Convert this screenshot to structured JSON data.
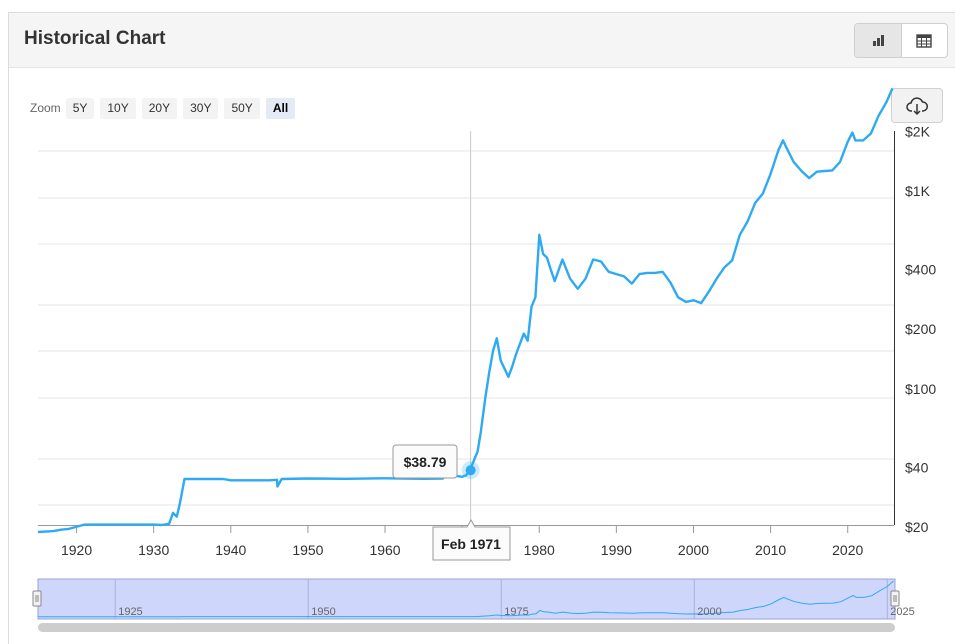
{
  "header": {
    "title": "Historical Chart",
    "chart_view_icon": "bar-chart-icon",
    "table_view_icon": "table-icon"
  },
  "zoom": {
    "label": "Zoom",
    "options": [
      "5Y",
      "10Y",
      "20Y",
      "30Y",
      "50Y",
      "All"
    ],
    "active": "All"
  },
  "download_icon": "cloud-download-icon",
  "tooltip": {
    "value": "$38.79",
    "date": "Feb 1971"
  },
  "colors": {
    "line": "#2eaaf2",
    "navigator_fill": "#cfd6fb",
    "grid": "#e6e6e6"
  },
  "chart_data": {
    "type": "line",
    "title": "",
    "xlabel": "",
    "ylabel": "",
    "y_scale": "log",
    "x_ticks": [
      "1920",
      "1930",
      "1940",
      "1950",
      "1960",
      "1970",
      "1980",
      "1990",
      "2000",
      "2010",
      "2020"
    ],
    "y_ticks": [
      "$20",
      "$40",
      "$100",
      "$200",
      "$400",
      "$1K",
      "$2K"
    ],
    "y_tick_values": [
      20,
      40,
      100,
      200,
      400,
      1000,
      2000
    ],
    "xlim": [
      1915,
      2026
    ],
    "navigator_ticks": [
      "1925",
      "1950",
      "1975",
      "2000",
      "2025"
    ],
    "series": [
      {
        "x": [
          1915,
          1917,
          1918,
          1919,
          1921,
          1925,
          1930,
          1931,
          1932,
          1932.5,
          1933,
          1933.4,
          1934,
          1939,
          1940,
          1945,
          1946,
          1946.05,
          1946.6,
          1950,
          1955,
          1960,
          1965,
          1967.5,
          1968,
          1969,
          1970,
          1970.5,
          1971,
          1971.2,
          1972,
          1972.4,
          1973,
          1973.5,
          1974,
          1974.5,
          1975,
          1976,
          1976.5,
          1977,
          1978,
          1978.5,
          1979,
          1979.5,
          1980,
          1980.5,
          1981,
          1981.5,
          1982,
          1983,
          1984,
          1985,
          1986,
          1987,
          1988,
          1989,
          1990,
          1991,
          1992,
          1993,
          1994,
          1995,
          1996,
          1997,
          1998,
          1999,
          2000,
          2001,
          2002,
          2003,
          2004,
          2005,
          2006,
          2007,
          2008,
          2009,
          2010,
          2011,
          2011.6,
          2012,
          2013,
          2014,
          2015,
          2016,
          2017,
          2018,
          2019,
          2020,
          2020.6,
          2021,
          2022,
          2023,
          2024,
          2025,
          2025.8
        ],
        "y": [
          18.9,
          19.1,
          19.4,
          19.6,
          20.6,
          20.6,
          20.6,
          20.5,
          20.8,
          23.6,
          22.6,
          26.4,
          35.0,
          35.0,
          34.5,
          34.5,
          34.7,
          32.1,
          35.0,
          35.2,
          35.1,
          35.3,
          35.1,
          35.2,
          39.2,
          36.4,
          35.9,
          36.5,
          38.8,
          40.5,
          48.2,
          60.0,
          90.0,
          120.0,
          155.0,
          180.0,
          139.0,
          115.0,
          130.0,
          150.0,
          190.0,
          175.0,
          260.0,
          290.0,
          600.0,
          480.0,
          460.0,
          400.0,
          350.0,
          450.0,
          360.0,
          320.0,
          360.0,
          450.0,
          440.0,
          390.0,
          380.0,
          370.0,
          340.0,
          380.0,
          385.0,
          385.0,
          390.0,
          345.0,
          290.0,
          275.0,
          280.0,
          271.0,
          310.0,
          360.0,
          410.0,
          445.0,
          600.0,
          700.0,
          870.0,
          970.0,
          1220.0,
          1600.0,
          1800.0,
          1670.0,
          1400.0,
          1260.0,
          1160.0,
          1250.0,
          1260.0,
          1270.0,
          1400.0,
          1770.0,
          1970.0,
          1800.0,
          1800.0,
          1950.0,
          2400.0,
          2800.0,
          3300.0
        ]
      }
    ]
  }
}
